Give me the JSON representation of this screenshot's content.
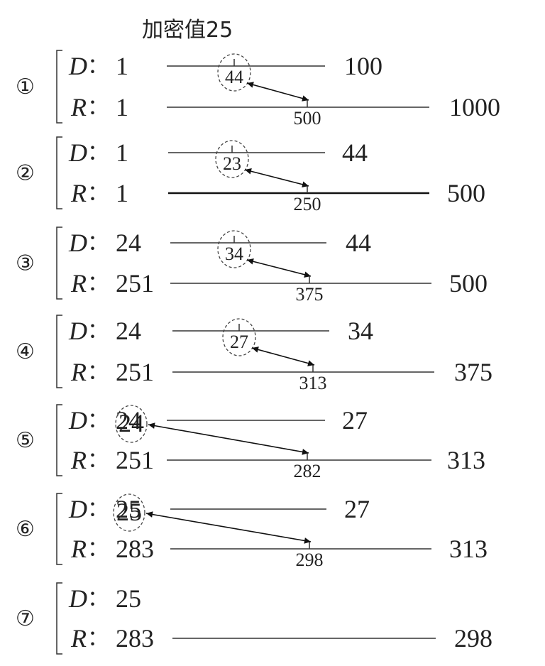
{
  "title": "加密值25",
  "labels": {
    "d": "D",
    "r": "R",
    "colon": "："
  },
  "steps": [
    {
      "circle": "①",
      "d_lo": "1",
      "d_hi": "100",
      "r_lo": "1",
      "r_hi": "1000",
      "d_mid": "44",
      "r_mid": "500",
      "mid_at_start": false,
      "r_bold": false
    },
    {
      "circle": "②",
      "d_lo": "1",
      "d_hi": "44",
      "r_lo": "1",
      "r_hi": "500",
      "d_mid": "23",
      "r_mid": "250",
      "mid_at_start": false,
      "r_bold": true
    },
    {
      "circle": "③",
      "d_lo": "24",
      "d_hi": "44",
      "r_lo": "251",
      "r_hi": "500",
      "d_mid": "34",
      "r_mid": "375",
      "mid_at_start": false,
      "r_bold": false
    },
    {
      "circle": "④",
      "d_lo": "24",
      "d_hi": "34",
      "r_lo": "251",
      "r_hi": "375",
      "d_mid": "27",
      "r_mid": "313",
      "mid_at_start": false,
      "r_bold": false
    },
    {
      "circle": "⑤",
      "d_lo": "24",
      "d_hi": "27",
      "r_lo": "251",
      "r_hi": "313",
      "d_mid": "24",
      "r_mid": "282",
      "mid_at_start": true,
      "r_bold": false
    },
    {
      "circle": "⑥",
      "d_lo": "25",
      "d_hi": "27",
      "r_lo": "283",
      "r_hi": "313",
      "d_mid": "25",
      "r_mid": "298",
      "mid_at_start": true,
      "r_bold": false
    },
    {
      "circle": "⑦",
      "d_lo": "25",
      "d_hi": "",
      "r_lo": "283",
      "r_hi": "298",
      "d_mid": "",
      "r_mid": "",
      "mid_at_start": false,
      "r_bold": false,
      "no_d_line": true
    }
  ]
}
